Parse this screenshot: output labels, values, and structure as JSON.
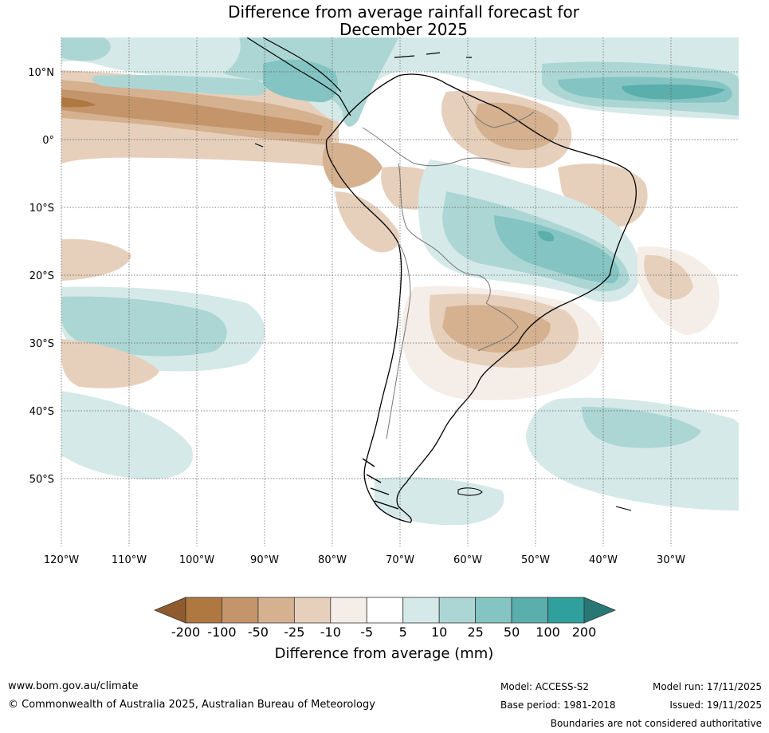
{
  "title": {
    "line1": "Difference from average rainfall forecast for",
    "line2": "December 2025"
  },
  "map": {
    "lon_ticks": [
      "120°W",
      "110°W",
      "100°W",
      "90°W",
      "80°W",
      "70°W",
      "60°W",
      "50°W",
      "40°W",
      "30°W"
    ],
    "lat_ticks": [
      "10°N",
      "0°",
      "10°S",
      "20°S",
      "30°S",
      "40°S",
      "50°S"
    ],
    "lon_range": [
      -120,
      -20
    ],
    "lat_range": [
      -60,
      15
    ]
  },
  "colorbar": {
    "title": "Difference from average (mm)",
    "labels": [
      "-200",
      "-100",
      "-50",
      "-25",
      "-10",
      "-5",
      "5",
      "10",
      "25",
      "50",
      "100",
      "200"
    ],
    "colors": [
      "#8f5b2e",
      "#ae7840",
      "#c4956a",
      "#d5b190",
      "#e6d0bc",
      "#f5ede7",
      "#ffffff",
      "#d5e9e8",
      "#acd6d4",
      "#84c4c2",
      "#5aaeab",
      "#30a09d",
      "#287775"
    ]
  },
  "footer": {
    "url": "www.bom.gov.au/climate",
    "copyright": "© Commonwealth of Australia 2025, Australian Bureau of Meteorology",
    "model": "Model: ACCESS-S2",
    "base_period": "Base period: 1981-2018",
    "model_run": "Model run: 17/11/2025",
    "issued": "Issued: 19/11/2025",
    "boundaries": "Boundaries are not considered authoritative"
  }
}
